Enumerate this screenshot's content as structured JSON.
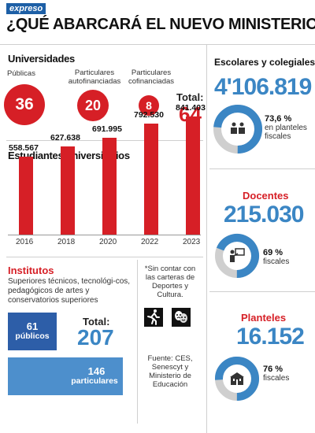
{
  "header": {
    "brand": "expreso",
    "headline": "¿QUÉ ABARCARÁ EL NUEVO MINISTERIO?"
  },
  "universities": {
    "title": "Universidades",
    "items": [
      {
        "label": "Públicas",
        "value": "36"
      },
      {
        "label": "Particulares autofinanciadas",
        "value": "20"
      },
      {
        "label": "Particulares cofinanciadas",
        "value": "8"
      }
    ],
    "total_label": "Total:",
    "total_value": "64"
  },
  "students": {
    "title": "Estudiantes universitarios"
  },
  "chart_data": {
    "type": "bar",
    "title": "Estudiantes universitarios",
    "categories": [
      "2016",
      "2018",
      "2020",
      "2022",
      "2023"
    ],
    "values": [
      558567,
      627638,
      691995,
      792530,
      841403
    ],
    "value_labels": [
      "558.567",
      "627.638",
      "691.995",
      "792.530",
      "841.403"
    ],
    "ylim": [
      0,
      900000
    ],
    "grid": false,
    "color": "#d61f26"
  },
  "institutes": {
    "title": "Institutos",
    "description": "Superiores técnicos, tecnológi-cos, pedagógicos de artes y conservatorios superiores",
    "public_value": "61",
    "public_label": "públicos",
    "private_value": "146",
    "private_label": "particulares",
    "total_label": "Total:",
    "total_value": "207"
  },
  "note": {
    "text": "*Sin contar con las carteras de Deportes y Cultura.",
    "source": "Fuente: CES, Senescyt y Ministerio de Educación"
  },
  "students_school": {
    "title": "Escolares y colegiales",
    "value": "4'106.819",
    "pct": "73,6 %",
    "pct_label": "en planteles fiscales",
    "pct_value": 0.736
  },
  "teachers": {
    "title": "Docentes",
    "value": "215.030",
    "pct": "69 %",
    "pct_label": "fiscales",
    "pct_value": 0.69
  },
  "schools": {
    "title": "Planteles",
    "value": "16.152",
    "pct": "76 %",
    "pct_label": "fiscales",
    "pct_value": 0.76
  },
  "colors": {
    "red": "#d61f26",
    "blue": "#3b86c4",
    "dark_blue": "#2d5ea8",
    "light_blue": "#4d8fcc",
    "donut_gray": "#cfcfcf"
  },
  "icons": [
    "runner-icon",
    "theater-masks-icon",
    "students-icon",
    "teacher-icon",
    "school-building-icon"
  ]
}
